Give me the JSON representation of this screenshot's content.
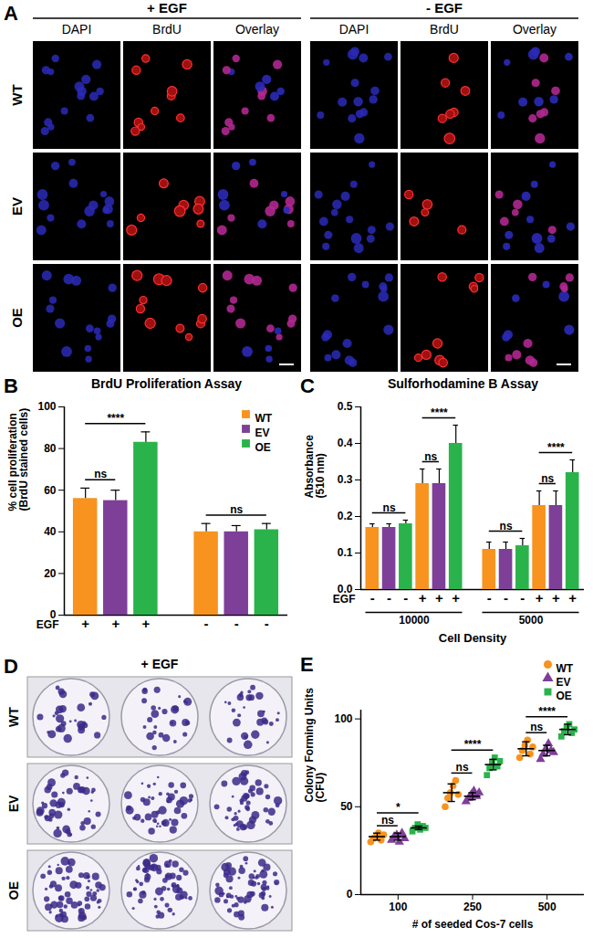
{
  "chart_data": [
    {
      "panel_label": "B",
      "type": "bar",
      "title": "BrdU Proliferation Assay",
      "ylabel": [
        "% cell proliferation",
        "(BrdU stained cells)"
      ],
      "category_label": "EGF",
      "categories": [
        "+",
        "-"
      ],
      "series": [
        {
          "name": "WT",
          "color": "#f7931e",
          "values": [
            56,
            40
          ],
          "errors": [
            5,
            4
          ]
        },
        {
          "name": "EV",
          "color": "#7e3f98",
          "values": [
            55,
            40
          ],
          "errors": [
            5,
            3
          ]
        },
        {
          "name": "OE",
          "color": "#2ab34b",
          "values": [
            83,
            41
          ],
          "errors": [
            5,
            3
          ]
        }
      ],
      "ylim": [
        0,
        100
      ],
      "yticks": [
        0,
        20,
        40,
        60,
        80,
        100
      ],
      "legend": "top-right",
      "annotations": [
        {
          "text": "ns",
          "category_index": 0,
          "series": [
            "WT",
            "EV"
          ]
        },
        {
          "text": "****",
          "category_index": 0,
          "series": [
            "WT",
            "OE"
          ]
        },
        {
          "text": "ns",
          "category_index": 1,
          "series": [
            "WT",
            "OE"
          ]
        }
      ]
    },
    {
      "panel_label": "C",
      "type": "bar",
      "title": "Sulforhodamine B Assay",
      "ylabel": [
        "Absorbance",
        "(510 nm)"
      ],
      "category_label": "EGF",
      "xlabel": "Cell Density",
      "categories": [
        "-",
        "+",
        "-",
        "+"
      ],
      "category_groups": [
        "10000",
        "10000",
        "5000",
        "5000"
      ],
      "series": [
        {
          "name": "WT",
          "color": "#f7931e",
          "values": [
            0.17,
            0.29,
            0.11,
            0.23
          ],
          "errors": [
            0.01,
            0.04,
            0.02,
            0.04
          ]
        },
        {
          "name": "EV",
          "color": "#7e3f98",
          "values": [
            0.17,
            0.29,
            0.11,
            0.23
          ],
          "errors": [
            0.01,
            0.04,
            0.02,
            0.04
          ]
        },
        {
          "name": "OE",
          "color": "#2ab34b",
          "values": [
            0.18,
            0.4,
            0.12,
            0.32
          ],
          "errors": [
            0.01,
            0.05,
            0.02,
            0.035
          ]
        }
      ],
      "ylim": [
        0,
        0.5
      ],
      "yticks": [
        {
          "value": 0,
          "label": "0.0"
        },
        0.1,
        0.2,
        0.3,
        0.4,
        0.5
      ],
      "annotations": [
        {
          "text": "ns",
          "category_index": 0,
          "series": [
            "WT",
            "OE"
          ]
        },
        {
          "text": "ns",
          "category_index": 1,
          "series": [
            "WT",
            "EV"
          ]
        },
        {
          "text": "****",
          "category_index": 1,
          "series": [
            "WT",
            "OE"
          ]
        },
        {
          "text": "ns",
          "category_index": 2,
          "series": [
            "WT",
            "OE"
          ]
        },
        {
          "text": "ns",
          "category_index": 3,
          "series": [
            "WT",
            "EV"
          ]
        },
        {
          "text": "****",
          "category_index": 3,
          "series": [
            "WT",
            "OE"
          ]
        }
      ]
    },
    {
      "panel_label": "E",
      "type": "scatter",
      "ylabel": [
        "Colony Forming Units",
        "(CFU)"
      ],
      "xlabel": "# of seeded Cos-7 cells",
      "categories": [
        "100",
        "250",
        "500"
      ],
      "series": [
        {
          "name": "WT",
          "color": "#f7931e",
          "marker": "circle",
          "values": [
            [
              30,
              32,
              33,
              35,
              31,
              34
            ],
            [
              50,
              55,
              58,
              62,
              65,
              57
            ],
            [
              78,
              82,
              85,
              88,
              80,
              84
            ]
          ],
          "means": [
            33,
            58,
            83
          ],
          "errors": [
            2,
            5,
            4
          ]
        },
        {
          "name": "EV",
          "color": "#7e3f98",
          "marker": "triangle",
          "values": [
            [
              31,
              33,
              34,
              30,
              35,
              32
            ],
            [
              53,
              55,
              57,
              59,
              56,
              58
            ],
            [
              77,
              80,
              83,
              86,
              82,
              81
            ]
          ],
          "means": [
            33,
            56,
            82
          ],
          "errors": [
            2,
            2,
            3
          ]
        },
        {
          "name": "OE",
          "color": "#2ab34b",
          "marker": "square",
          "values": [
            [
              36,
              38,
              40,
              37,
              39,
              38
            ],
            [
              68,
              72,
              75,
              78,
              73,
              76
            ],
            [
              90,
              93,
              95,
              97,
              92,
              94
            ]
          ],
          "means": [
            38,
            74,
            94
          ],
          "errors": [
            1,
            3,
            3
          ]
        }
      ],
      "ylim": [
        0,
        105
      ],
      "yticks": [
        0,
        50,
        100
      ],
      "legend": "top-right",
      "annotations": [
        {
          "text": "ns",
          "category_index": 0,
          "series": [
            "WT",
            "EV"
          ]
        },
        {
          "text": "*",
          "category_index": 0,
          "series": [
            "WT",
            "OE"
          ]
        },
        {
          "text": "ns",
          "category_index": 1,
          "series": [
            "WT",
            "EV"
          ]
        },
        {
          "text": "****",
          "category_index": 1,
          "series": [
            "WT",
            "OE"
          ]
        },
        {
          "text": "ns",
          "category_index": 2,
          "series": [
            "WT",
            "EV"
          ]
        },
        {
          "text": "****",
          "category_index": 2,
          "series": [
            "WT",
            "OE"
          ]
        }
      ]
    }
  ],
  "images": {
    "A": {
      "panel_label": "A",
      "conditions": [
        "+ EGF",
        "- EGF"
      ],
      "channels": [
        "DAPI",
        "BrdU",
        "Overlay"
      ],
      "rows": [
        "WT",
        "EV",
        "OE"
      ]
    },
    "D": {
      "panel_label": "D",
      "condition": "+ EGF",
      "rows": [
        "WT",
        "EV",
        "OE"
      ]
    }
  }
}
